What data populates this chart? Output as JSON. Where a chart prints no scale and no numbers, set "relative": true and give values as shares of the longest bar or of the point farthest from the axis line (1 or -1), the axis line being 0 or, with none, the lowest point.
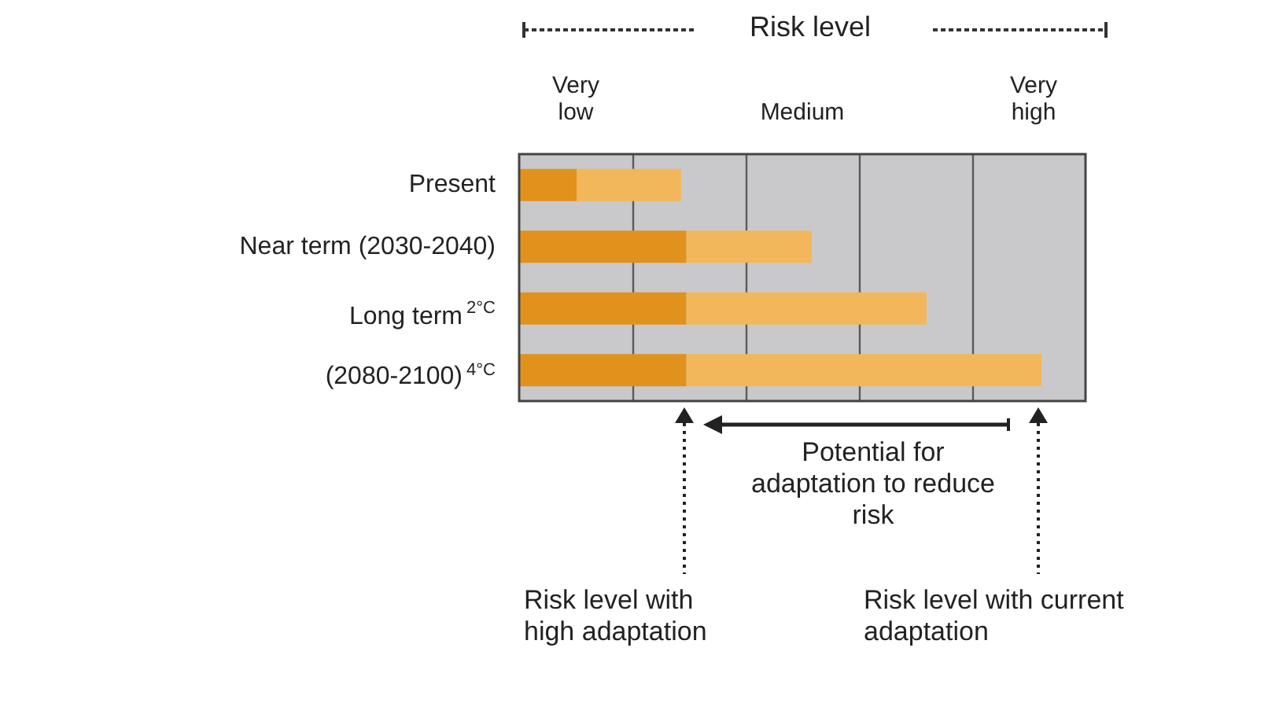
{
  "chart_data": {
    "type": "bar",
    "orientation": "horizontal",
    "stacked": true,
    "relative": true,
    "grid": "x",
    "categories": [
      "Present",
      "Near term (2030-2040)",
      "2°C",
      "4°C"
    ],
    "series": [
      {
        "color": "#e0921c",
        "values": [
          0.11,
          0.32,
          0.32,
          0.32
        ]
      },
      {
        "color": "#f2b75a",
        "values": [
          0.2,
          0.24,
          0.46,
          0.68
        ]
      }
    ],
    "annotations": [
      "Risk level",
      "Very low",
      "Medium",
      "Very high",
      "Long term (2080-2100)",
      "Potential for adaptation to reduce risk",
      "Risk level with high adaptation",
      "Risk level with current adaptation"
    ]
  }
}
